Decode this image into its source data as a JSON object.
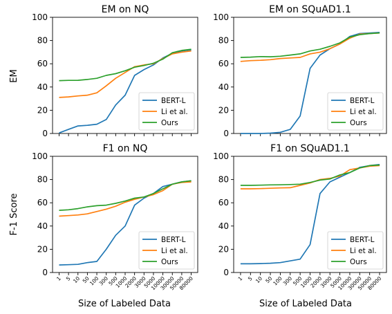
{
  "figure": {
    "xlabel": "Size of Labeled Data",
    "ylabel_top": "EM",
    "ylabel_bottom": "F-1 Score",
    "series_colors": {
      "BERT-L": "#1f77b4",
      "Li et al.": "#ff7f0e",
      "Ours": "#2ca02c"
    }
  },
  "chart_data": [
    {
      "type": "line",
      "title": "EM on NQ",
      "categories": [
        "1",
        "5",
        "10",
        "50",
        "100",
        "300",
        "500",
        "1000",
        "2000",
        "3000",
        "5000",
        "10000",
        "30000",
        "50000",
        "80000"
      ],
      "ylim": [
        0,
        100
      ],
      "yticks": [
        "0",
        "20",
        "40",
        "60",
        "80",
        "100"
      ],
      "show_x_tick_labels": false,
      "ylabel": "EM",
      "legend": "lower-right",
      "grid": false,
      "series": [
        {
          "name": "BERT-L",
          "color": "#1f77b4",
          "values": [
            0.5,
            3.5,
            6.5,
            7,
            8,
            12,
            24.5,
            33,
            50,
            55,
            59,
            65,
            69,
            71,
            72
          ]
        },
        {
          "name": "Li et al.",
          "color": "#ff7f0e",
          "values": [
            31,
            31.5,
            32.3,
            33,
            35,
            41,
            47.5,
            52.5,
            57.5,
            59,
            60,
            64.5,
            68.5,
            70,
            71
          ]
        },
        {
          "name": "Ours",
          "color": "#2ca02c",
          "values": [
            45.5,
            45.7,
            45.8,
            46.5,
            47.5,
            50,
            51.5,
            54,
            57,
            58.5,
            60.5,
            64,
            69.5,
            71.5,
            72.5
          ]
        }
      ]
    },
    {
      "type": "line",
      "title": "EM on SQuAD1.1",
      "categories": [
        "1",
        "5",
        "10",
        "50",
        "100",
        "300",
        "500",
        "1000",
        "2000",
        "3000",
        "5000",
        "10000",
        "30000",
        "50000",
        "80000"
      ],
      "ylim": [
        0,
        100
      ],
      "yticks": [
        "0",
        "20",
        "40",
        "60",
        "80",
        "100"
      ],
      "show_x_tick_labels": false,
      "ylabel": "",
      "legend": "lower-right",
      "grid": false,
      "series": [
        {
          "name": "BERT-L",
          "color": "#1f77b4",
          "values": [
            0,
            0,
            0,
            0.3,
            1,
            3.5,
            15,
            56,
            67.5,
            73,
            77,
            83.5,
            86,
            86.5,
            87
          ]
        },
        {
          "name": "Li et al.",
          "color": "#ff7f0e",
          "values": [
            62,
            62.7,
            63,
            63.5,
            64.5,
            65,
            65.5,
            68.5,
            70,
            73,
            77,
            82,
            85.5,
            86,
            86.5
          ]
        },
        {
          "name": "Ours",
          "color": "#2ca02c",
          "values": [
            65.5,
            65.7,
            66.2,
            66,
            66.5,
            67.5,
            68.5,
            71,
            72.5,
            75,
            78,
            83,
            85,
            86,
            86.5
          ]
        }
      ]
    },
    {
      "type": "line",
      "title": "F1 on NQ",
      "categories": [
        "1",
        "5",
        "10",
        "50",
        "100",
        "300",
        "500",
        "1000",
        "2000",
        "3000",
        "5000",
        "10000",
        "30000",
        "50000",
        "80000"
      ],
      "ylim": [
        0,
        100
      ],
      "yticks": [
        "0",
        "20",
        "40",
        "60",
        "80",
        "100"
      ],
      "show_x_tick_labels": true,
      "ylabel": "F-1 Score",
      "legend": "lower-right",
      "grid": false,
      "series": [
        {
          "name": "BERT-L",
          "color": "#1f77b4",
          "values": [
            6.5,
            6.7,
            7,
            8.5,
            9.5,
            20,
            32,
            40,
            58,
            64,
            68,
            74,
            76,
            78,
            79
          ]
        },
        {
          "name": "Li et al.",
          "color": "#ff7f0e",
          "values": [
            48.5,
            49,
            49.5,
            50.5,
            52.5,
            54.5,
            57,
            60.5,
            63,
            65,
            67,
            70.5,
            76,
            77.5,
            78
          ]
        },
        {
          "name": "Ours",
          "color": "#2ca02c",
          "values": [
            53.5,
            54,
            55,
            56.5,
            57.5,
            58,
            59.5,
            61.5,
            64,
            65,
            68,
            72,
            76,
            78,
            79
          ]
        }
      ]
    },
    {
      "type": "line",
      "title": "F1 on SQuAD1.1",
      "categories": [
        "1",
        "5",
        "10",
        "50",
        "100",
        "300",
        "500",
        "1000",
        "2000",
        "3000",
        "5000",
        "10000",
        "30000",
        "50000",
        "80000"
      ],
      "ylim": [
        0,
        100
      ],
      "yticks": [
        "0",
        "20",
        "40",
        "60",
        "80",
        "100"
      ],
      "show_x_tick_labels": true,
      "ylabel": "",
      "legend": "lower-right",
      "grid": false,
      "series": [
        {
          "name": "BERT-L",
          "color": "#1f77b4",
          "values": [
            7.5,
            7.5,
            7.7,
            8,
            8.5,
            10,
            11.5,
            24,
            68,
            78,
            82,
            86,
            90.5,
            92,
            93
          ]
        },
        {
          "name": "Li et al.",
          "color": "#ff7f0e",
          "values": [
            72,
            72,
            72.2,
            72.5,
            72.8,
            73,
            75,
            77,
            80,
            81,
            83,
            88.5,
            90,
            91.5,
            92
          ]
        },
        {
          "name": "Ours",
          "color": "#2ca02c",
          "values": [
            75,
            75,
            75.2,
            75.4,
            75.5,
            75.7,
            76,
            77.5,
            79.5,
            80.5,
            84,
            86,
            90,
            92,
            92.5
          ]
        }
      ]
    }
  ]
}
